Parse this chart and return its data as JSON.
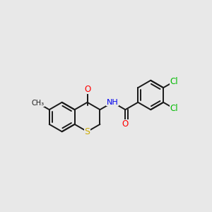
{
  "bg_color": "#e8e8e8",
  "bond_color": "#1a1a1a",
  "atom_colors": {
    "S": "#ccaa00",
    "O": "#ff0000",
    "N": "#0000ee",
    "Cl": "#00bb00",
    "C": "#1a1a1a"
  },
  "figsize": [
    3.0,
    3.0
  ],
  "dpi": 100,
  "scale": 0.55
}
